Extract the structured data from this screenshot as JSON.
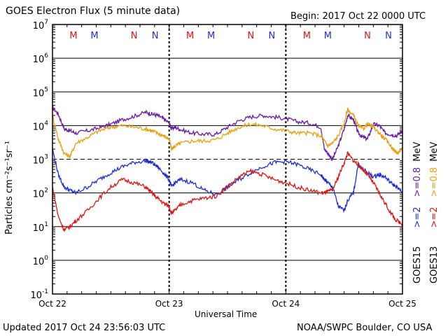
{
  "header": {
    "title": "GOES Electron Flux (5 minute data)",
    "begin": "Begin: 2017 Oct 22 0000 UTC"
  },
  "footer": {
    "updated": "Updated 2017 Oct 24 23:56:03 UTC",
    "credit": "NOAA/SWPC Boulder, CO USA"
  },
  "colors": {
    "goes15_low": "#1f2fd8",
    "goes15_high": "#6a1aa6",
    "goes13_low": "#e01414",
    "goes13_high": "#e8a010"
  },
  "chart_data": {
    "type": "line",
    "xlabel": "Universal Time",
    "ylabel": "Particles cm⁻²s⁻¹sr⁻¹",
    "yscale": "log",
    "ylim": [
      0.1,
      10000000
    ],
    "xlim": [
      "2017-10-22 00:00",
      "2017-10-25 00:00"
    ],
    "x_ticks": [
      "Oct 22",
      "Oct 23",
      "Oct 24",
      "Oct 25"
    ],
    "y_ticks": [
      {
        "value": 0.1,
        "base": "10",
        "exp": "-1"
      },
      {
        "value": 1,
        "base": "10",
        "exp": "0"
      },
      {
        "value": 10,
        "base": "10",
        "exp": "1"
      },
      {
        "value": 100,
        "base": "10",
        "exp": "2"
      },
      {
        "value": 1000,
        "base": "10",
        "exp": "3"
      },
      {
        "value": 10000,
        "base": "10",
        "exp": "4"
      },
      {
        "value": 100000,
        "base": "10",
        "exp": "5"
      },
      {
        "value": 1000000,
        "base": "10",
        "exp": "6"
      },
      {
        "value": 10000000,
        "base": "10",
        "exp": "7"
      }
    ],
    "threshold": 1000,
    "markers": [
      {
        "label": "M",
        "day": 0.18,
        "color": "#e01414"
      },
      {
        "label": "M",
        "day": 0.36,
        "color": "#1f2fd8"
      },
      {
        "label": "N",
        "day": 0.7,
        "color": "#e01414"
      },
      {
        "label": "N",
        "day": 0.88,
        "color": "#1f2fd8"
      },
      {
        "label": "M",
        "day": 1.18,
        "color": "#e01414"
      },
      {
        "label": "M",
        "day": 1.36,
        "color": "#1f2fd8"
      },
      {
        "label": "N",
        "day": 1.7,
        "color": "#e01414"
      },
      {
        "label": "N",
        "day": 1.88,
        "color": "#1f2fd8"
      },
      {
        "label": "M",
        "day": 2.18,
        "color": "#e01414"
      },
      {
        "label": "M",
        "day": 2.36,
        "color": "#1f2fd8"
      },
      {
        "label": "N",
        "day": 2.7,
        "color": "#e01414"
      },
      {
        "label": "N",
        "day": 2.88,
        "color": "#1f2fd8"
      }
    ],
    "legend": {
      "placement": "right",
      "goes15_label": "GOES15",
      "goes13_label": "GOES13",
      "goes15_low": ">=2",
      "goes15_high": ">=0.8",
      "goes13_low": ">=2",
      "goes13_high": ">=0.8",
      "unit": "MeV"
    },
    "series": [
      {
        "name": "GOES15 >=0.8 MeV",
        "color": "#6a1aa6",
        "x": [
          0.0,
          0.05,
          0.1,
          0.15,
          0.2,
          0.3,
          0.4,
          0.5,
          0.6,
          0.7,
          0.8,
          0.85,
          0.9,
          0.95,
          1.0,
          1.02,
          1.05,
          1.1,
          1.2,
          1.3,
          1.4,
          1.5,
          1.6,
          1.7,
          1.8,
          1.9,
          2.0,
          2.1,
          2.2,
          2.3,
          2.33,
          2.36,
          2.4,
          2.45,
          2.5,
          2.53,
          2.58,
          2.62,
          2.66,
          2.7,
          2.75,
          2.8,
          2.85,
          2.9,
          2.95,
          3.0
        ],
        "y": [
          35000,
          22000,
          8000,
          7000,
          6000,
          7000,
          8500,
          11000,
          15000,
          19000,
          25000,
          22000,
          20000,
          16000,
          12000,
          8000,
          9000,
          7500,
          6000,
          5500,
          5500,
          9000,
          14000,
          18000,
          20000,
          18000,
          16000,
          13000,
          12000,
          9000,
          2000,
          1500,
          1000,
          2500,
          8000,
          20000,
          15000,
          6000,
          4500,
          4000,
          11000,
          10000,
          6000,
          5500,
          5000,
          7000
        ]
      },
      {
        "name": "GOES13 >=0.8 MeV",
        "color": "#e8a010",
        "x": [
          0.0,
          0.05,
          0.1,
          0.15,
          0.2,
          0.3,
          0.4,
          0.5,
          0.6,
          0.7,
          0.8,
          0.85,
          0.9,
          0.95,
          1.0,
          1.02,
          1.05,
          1.1,
          1.2,
          1.3,
          1.4,
          1.5,
          1.6,
          1.7,
          1.8,
          1.9,
          2.0,
          2.1,
          2.2,
          2.3,
          2.33,
          2.36,
          2.4,
          2.45,
          2.5,
          2.53,
          2.58,
          2.62,
          2.66,
          2.7,
          2.75,
          2.8,
          2.85,
          2.9,
          2.95,
          3.0
        ],
        "y": [
          20000,
          4000,
          1500,
          1200,
          3000,
          4500,
          7000,
          9000,
          10000,
          9000,
          8000,
          7000,
          6000,
          5000,
          4000,
          2000,
          2500,
          3000,
          3500,
          3500,
          3800,
          6000,
          9000,
          11000,
          10000,
          8000,
          7000,
          6000,
          6000,
          5000,
          3500,
          2500,
          3000,
          5000,
          12000,
          30000,
          20000,
          10000,
          8000,
          11000,
          9000,
          6000,
          4000,
          2500,
          1500,
          2000
        ]
      },
      {
        "name": "GOES15 >=2 MeV",
        "color": "#1f2fd8",
        "x": [
          0.0,
          0.05,
          0.1,
          0.15,
          0.2,
          0.3,
          0.4,
          0.5,
          0.6,
          0.7,
          0.8,
          0.85,
          0.9,
          0.95,
          1.0,
          1.02,
          1.05,
          1.1,
          1.2,
          1.3,
          1.4,
          1.5,
          1.6,
          1.7,
          1.8,
          1.9,
          2.0,
          2.1,
          2.2,
          2.3,
          2.33,
          2.36,
          2.4,
          2.45,
          2.5,
          2.53,
          2.58,
          2.62,
          2.66,
          2.7,
          2.75,
          2.8,
          2.85,
          2.9,
          2.95,
          3.0
        ],
        "y": [
          2000,
          350,
          150,
          120,
          100,
          150,
          250,
          400,
          600,
          800,
          900,
          800,
          600,
          400,
          250,
          150,
          200,
          250,
          200,
          120,
          90,
          150,
          250,
          400,
          600,
          800,
          850,
          700,
          500,
          350,
          250,
          200,
          150,
          40,
          30,
          60,
          100,
          700,
          500,
          400,
          300,
          350,
          300,
          200,
          150,
          100
        ]
      },
      {
        "name": "GOES13 >=2 MeV",
        "color": "#e01414",
        "x": [
          0.0,
          0.05,
          0.1,
          0.15,
          0.2,
          0.3,
          0.4,
          0.5,
          0.6,
          0.7,
          0.8,
          0.85,
          0.9,
          0.95,
          1.0,
          1.02,
          1.05,
          1.1,
          1.2,
          1.3,
          1.4,
          1.5,
          1.6,
          1.7,
          1.8,
          1.9,
          2.0,
          2.1,
          2.2,
          2.3,
          2.33,
          2.36,
          2.4,
          2.45,
          2.5,
          2.53,
          2.58,
          2.62,
          2.66,
          2.7,
          2.75,
          2.8,
          2.85,
          2.9,
          2.95,
          3.0
        ],
        "y": [
          150,
          20,
          8,
          10,
          15,
          30,
          70,
          150,
          250,
          200,
          150,
          100,
          70,
          50,
          40,
          25,
          30,
          45,
          60,
          70,
          80,
          150,
          300,
          450,
          350,
          250,
          200,
          150,
          120,
          100,
          100,
          110,
          120,
          300,
          800,
          1500,
          900,
          700,
          500,
          350,
          200,
          100,
          50,
          25,
          15,
          12
        ]
      }
    ]
  }
}
